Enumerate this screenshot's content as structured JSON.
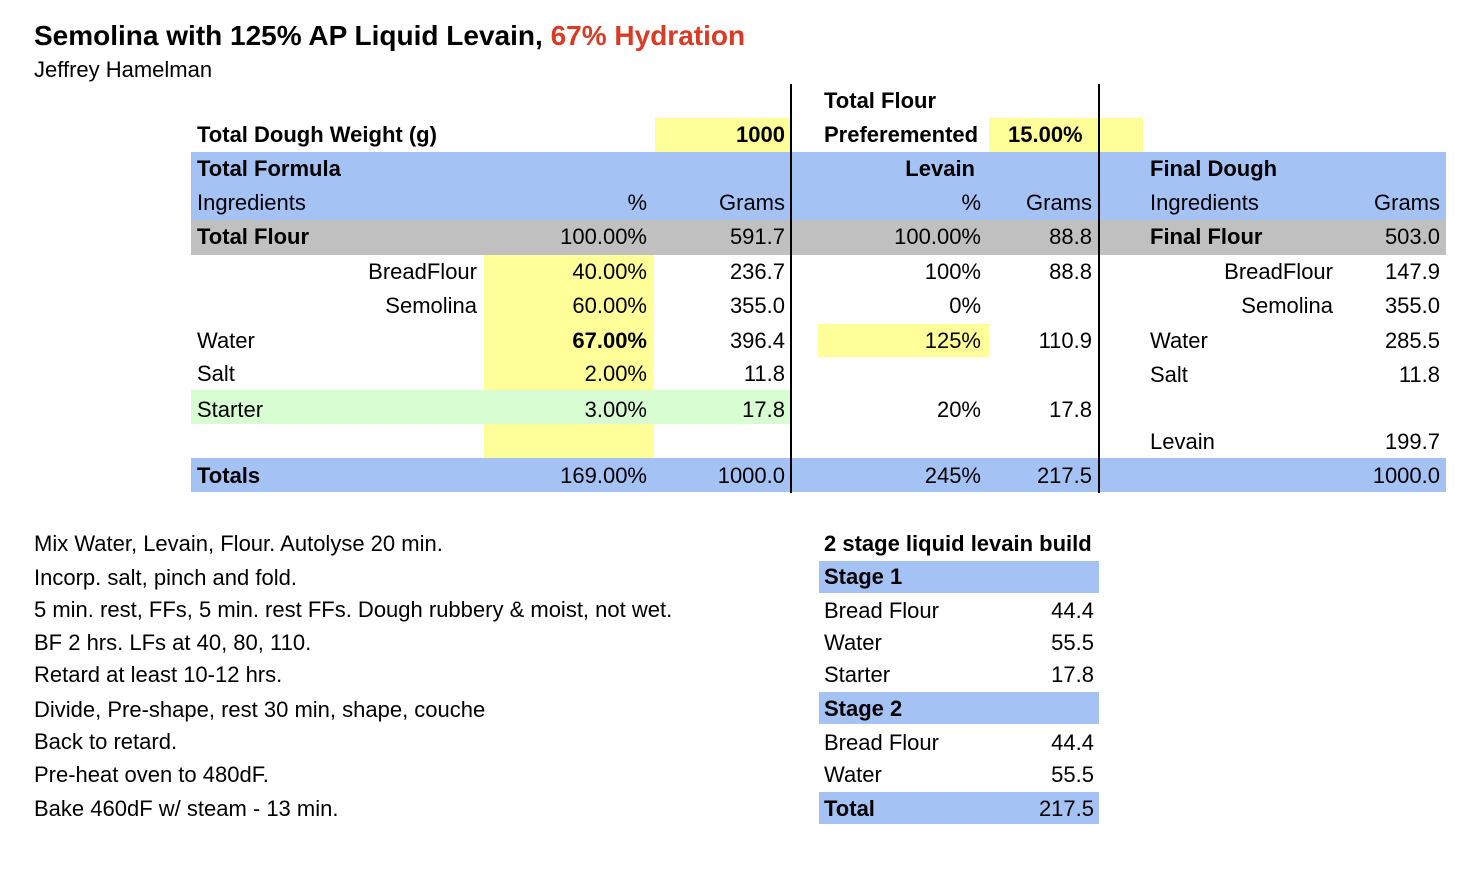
{
  "title": {
    "main": "Semolina with 125% AP Liquid Levain,",
    "hydration": "67% Hydration",
    "author": "Jeffrey Hamelman"
  },
  "colors": {
    "header_blue": "#a4c2f4",
    "input_yellow": "#ffff99",
    "total_grey": "#c0c0c0",
    "starter_green": "#d9fdd3",
    "hydration_red": "#d93b25"
  },
  "top": {
    "dough_weight_label": "Total Dough Weight (g)",
    "dough_weight_value": "1000",
    "prefermented_label_1": "Total Flour",
    "prefermented_label_2": "Preferemented",
    "prefermented_value": "15.00%"
  },
  "total_formula": {
    "title": "Total Formula",
    "col_ingredients": "Ingredients",
    "col_pct": "%",
    "col_grams": "Grams",
    "rows": [
      {
        "name": "Total Flour",
        "pct": "100.00%",
        "grams": "591.7"
      },
      {
        "name": "BreadFlour",
        "pct": "40.00%",
        "grams": "236.7"
      },
      {
        "name": "Semolina",
        "pct": "60.00%",
        "grams": "355.0"
      },
      {
        "name": "Water",
        "pct": "67.00%",
        "grams": "396.4"
      },
      {
        "name": "Salt",
        "pct": "2.00%",
        "grams": "11.8"
      },
      {
        "name": "Starter",
        "pct": "3.00%",
        "grams": "17.8"
      }
    ],
    "totals": {
      "name": "Totals",
      "pct": "169.00%",
      "grams": "1000.0"
    }
  },
  "levain": {
    "title": "Levain",
    "col_pct": "%",
    "col_grams": "Grams",
    "rows": [
      {
        "pct": "100.00%",
        "grams": "88.8"
      },
      {
        "pct": "100%",
        "grams": "88.8"
      },
      {
        "pct": "0%",
        "grams": ""
      },
      {
        "pct": "125%",
        "grams": "110.9"
      },
      {
        "pct": "20%",
        "grams": "17.8"
      }
    ],
    "totals": {
      "pct": "245%",
      "grams": "217.5"
    }
  },
  "final_dough": {
    "title": "Final Dough",
    "col_ingredients": "Ingredients",
    "col_grams": "Grams",
    "rows": [
      {
        "name": "Final Flour",
        "grams": "503.0"
      },
      {
        "name": "BreadFlour",
        "grams": "147.9"
      },
      {
        "name": "Semolina",
        "grams": "355.0"
      },
      {
        "name": "Water",
        "grams": "285.5"
      },
      {
        "name": "Salt",
        "grams": "11.8"
      },
      {
        "name": "Levain",
        "grams": "199.7"
      }
    ],
    "totals": {
      "grams": "1000.0"
    }
  },
  "instructions": [
    "Mix Water, Levain, Flour.  Autolyse 20 min.",
    "Incorp. salt, pinch and fold.",
    "5 min. rest, FFs, 5 min. rest FFs.  Dough rubbery & moist, not wet.",
    "BF 2 hrs. LFs at 40, 80, 110.",
    "Retard at least 10-12 hrs.",
    "Divide, Pre-shape, rest 30 min, shape, couche",
    "Back to retard.",
    "Pre-heat oven to 480dF.",
    "Bake 460dF w/ steam - 13 min."
  ],
  "levain_build": {
    "title": "2 stage liquid levain build",
    "stage1": {
      "label": "Stage 1",
      "rows": [
        {
          "name": "Bread Flour",
          "value": "44.4"
        },
        {
          "name": "Water",
          "value": "55.5"
        },
        {
          "name": "Starter",
          "value": "17.8"
        }
      ]
    },
    "stage2": {
      "label": "Stage 2",
      "rows": [
        {
          "name": "Bread Flour",
          "value": "44.4"
        },
        {
          "name": "Water",
          "value": "55.5"
        }
      ]
    },
    "total": {
      "label": "Total",
      "value": "217.5"
    }
  }
}
